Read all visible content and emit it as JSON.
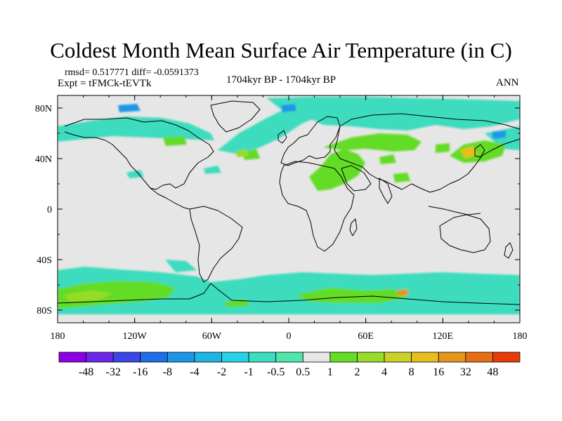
{
  "figure": {
    "title": "Coldest Month Mean Surface Air Temperature (in C)",
    "rmsd_line": "rmsd= 0.517771  diff= -0.0591373",
    "expt_line": "Expt = tFMCk-tEVTk",
    "period": "1704kyr BP - 1704kyr BP",
    "season": "ANN"
  },
  "map": {
    "projection": "cylindrical equidistant, global",
    "lon_range": [
      -180,
      180
    ],
    "lat_range": [
      -90,
      90
    ],
    "background_color": "#e6e6e6",
    "coastline_color": "#000000",
    "x_tick_labels": [
      "180",
      "120W",
      "60W",
      "0",
      "60E",
      "120E",
      "180"
    ],
    "y_tick_labels": [
      "80N",
      "40N",
      "0",
      "40S",
      "80S"
    ]
  },
  "colorbar": {
    "labels": [
      "-48",
      "-32",
      "-16",
      "-8",
      "-4",
      "-2",
      "-1",
      "-0.5",
      "0.5",
      "1",
      "2",
      "4",
      "8",
      "16",
      "32",
      "48"
    ],
    "colors": [
      "#8c00e6",
      "#6a28e6",
      "#3c46e6",
      "#1e6ee6",
      "#1e96e6",
      "#1eb4e6",
      "#28d2e6",
      "#3cdcbe",
      "#50e6aa",
      "#e6e6e6",
      "#64dc28",
      "#96dc28",
      "#c8d228",
      "#e6be1e",
      "#e6961e",
      "#e66e14",
      "#e63c0a"
    ]
  }
}
